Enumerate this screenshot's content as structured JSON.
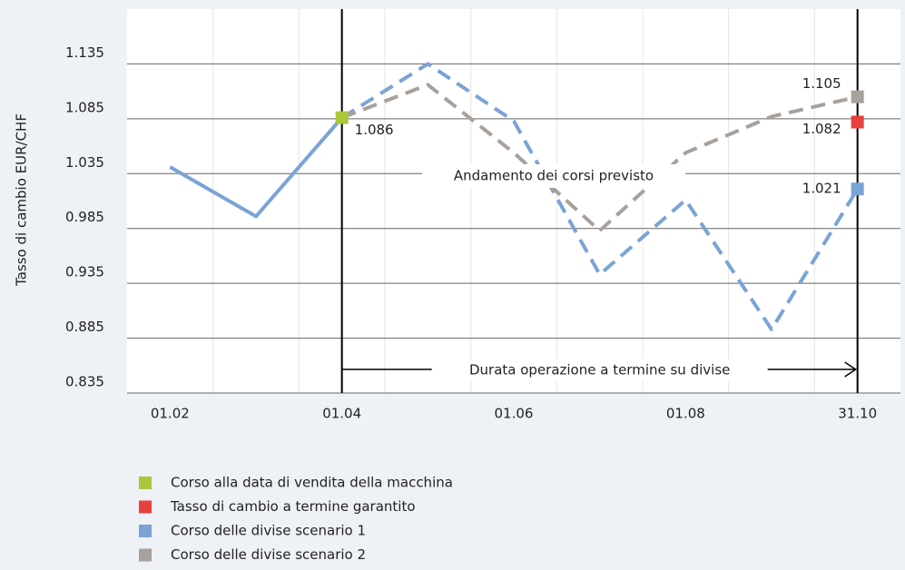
{
  "chart_data": {
    "type": "line",
    "y_label": "Tasso di cambio EUR/CHF",
    "categories": [
      "01.02",
      null,
      "01.04",
      null,
      "01.06",
      null,
      "01.08",
      null,
      "31.10"
    ],
    "ylim": [
      0.835,
      1.185
    ],
    "yticks": [
      0.835,
      0.885,
      0.935,
      0.985,
      1.035,
      1.085,
      1.135
    ],
    "grid": true,
    "series": [
      {
        "name": "Corso delle divise scenario 1",
        "color": "#7ba3d6",
        "values": [
          1.041,
          0.996,
          1.086,
          1.135,
          1.083,
          0.943,
          1.011,
          0.893,
          1.021
        ],
        "end_marker": true
      },
      {
        "name": "Corso delle divise scenario 2",
        "color": "#a8a09a",
        "values": [
          null,
          null,
          1.086,
          1.116,
          1.054,
          0.983,
          1.054,
          1.087,
          1.105
        ],
        "end_marker": true
      }
    ],
    "markers": [
      {
        "name": "Corso alla data di vendita della macchina",
        "color": "#a9c83a",
        "category": "01.04",
        "value": 1.086
      },
      {
        "name": "Tasso di cambio a termine garantito",
        "color": "#e8403c",
        "category": "31.10",
        "value": 1.082
      }
    ],
    "forward_period": {
      "label": "Durata operazione a termine su divise",
      "from": "01.04",
      "to": "31.10"
    },
    "annotation": "Andamento dei corsi previsto"
  }
}
